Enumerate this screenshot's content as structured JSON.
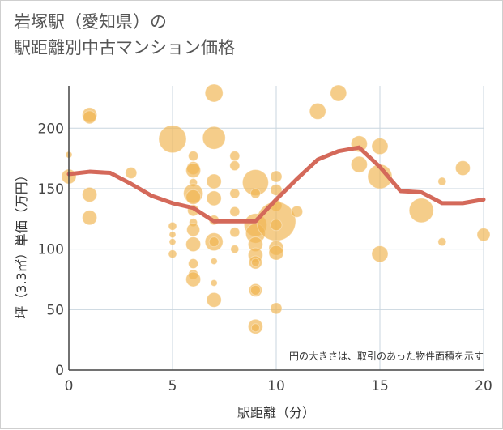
{
  "chart_data": {
    "type": "scatter",
    "title_lines": [
      "岩塚駅（愛知県）の",
      "駅距離別中古マンション価格"
    ],
    "xlabel": "駅距離（分）",
    "ylabel": "坪（3.3㎡）単価（万円）",
    "xlim": [
      0,
      20
    ],
    "ylim": [
      0,
      235
    ],
    "x_ticks": [
      0,
      5,
      10,
      15,
      20
    ],
    "y_ticks": [
      0,
      50,
      100,
      150,
      200
    ],
    "grid": true,
    "note": "円の大きさは、取引のあった物件面積を示す",
    "colors": {
      "bubble": "#f0b552",
      "line": "#d4695a",
      "grid": "#c9d6df",
      "axis": "#444444"
    },
    "bubbles": [
      {
        "x": 0,
        "y": 160,
        "size": 9
      },
      {
        "x": 0,
        "y": 178,
        "size": 4
      },
      {
        "x": 1,
        "y": 211,
        "size": 9
      },
      {
        "x": 1,
        "y": 209,
        "size": 8
      },
      {
        "x": 1,
        "y": 145,
        "size": 9
      },
      {
        "x": 1,
        "y": 126,
        "size": 9
      },
      {
        "x": 3,
        "y": 163,
        "size": 7
      },
      {
        "x": 5,
        "y": 191,
        "size": 17
      },
      {
        "x": 5,
        "y": 119,
        "size": 5
      },
      {
        "x": 5,
        "y": 112,
        "size": 4
      },
      {
        "x": 5,
        "y": 106,
        "size": 4
      },
      {
        "x": 5,
        "y": 96,
        "size": 5
      },
      {
        "x": 6,
        "y": 177,
        "size": 6
      },
      {
        "x": 6,
        "y": 167,
        "size": 8
      },
      {
        "x": 6,
        "y": 165,
        "size": 9
      },
      {
        "x": 6,
        "y": 155,
        "size": 5
      },
      {
        "x": 6,
        "y": 146,
        "size": 12
      },
      {
        "x": 6,
        "y": 143,
        "size": 9
      },
      {
        "x": 6,
        "y": 132,
        "size": 7
      },
      {
        "x": 6,
        "y": 122,
        "size": 5
      },
      {
        "x": 6,
        "y": 116,
        "size": 8
      },
      {
        "x": 6,
        "y": 104,
        "size": 9
      },
      {
        "x": 6,
        "y": 88,
        "size": 6
      },
      {
        "x": 6,
        "y": 79,
        "size": 6
      },
      {
        "x": 6,
        "y": 75,
        "size": 9
      },
      {
        "x": 7,
        "y": 229,
        "size": 11
      },
      {
        "x": 7,
        "y": 192,
        "size": 14
      },
      {
        "x": 7,
        "y": 156,
        "size": 9
      },
      {
        "x": 7,
        "y": 142,
        "size": 9
      },
      {
        "x": 7,
        "y": 124,
        "size": 6
      },
      {
        "x": 7,
        "y": 106,
        "size": 11
      },
      {
        "x": 7,
        "y": 106,
        "size": 6
      },
      {
        "x": 7,
        "y": 90,
        "size": 4
      },
      {
        "x": 7,
        "y": 72,
        "size": 4
      },
      {
        "x": 7,
        "y": 58,
        "size": 9
      },
      {
        "x": 8,
        "y": 177,
        "size": 6
      },
      {
        "x": 8,
        "y": 169,
        "size": 6
      },
      {
        "x": 8,
        "y": 146,
        "size": 6
      },
      {
        "x": 8,
        "y": 131,
        "size": 6
      },
      {
        "x": 8,
        "y": 114,
        "size": 6
      },
      {
        "x": 8,
        "y": 100,
        "size": 5
      },
      {
        "x": 9,
        "y": 155,
        "size": 16
      },
      {
        "x": 9,
        "y": 146,
        "size": 6
      },
      {
        "x": 9,
        "y": 120,
        "size": 14
      },
      {
        "x": 9,
        "y": 113,
        "size": 12
      },
      {
        "x": 9,
        "y": 104,
        "size": 9
      },
      {
        "x": 9,
        "y": 95,
        "size": 9
      },
      {
        "x": 9,
        "y": 89,
        "size": 8
      },
      {
        "x": 9,
        "y": 89,
        "size": 5
      },
      {
        "x": 9,
        "y": 66,
        "size": 8
      },
      {
        "x": 9,
        "y": 66,
        "size": 6
      },
      {
        "x": 9,
        "y": 36,
        "size": 9
      },
      {
        "x": 9,
        "y": 35,
        "size": 5
      },
      {
        "x": 10,
        "y": 160,
        "size": 7
      },
      {
        "x": 10,
        "y": 149,
        "size": 7
      },
      {
        "x": 10,
        "y": 136,
        "size": 7
      },
      {
        "x": 10,
        "y": 123,
        "size": 24
      },
      {
        "x": 10,
        "y": 120,
        "size": 7
      },
      {
        "x": 10,
        "y": 101,
        "size": 9
      },
      {
        "x": 10,
        "y": 97,
        "size": 9
      },
      {
        "x": 10,
        "y": 51,
        "size": 7
      },
      {
        "x": 11,
        "y": 131,
        "size": 7
      },
      {
        "x": 12,
        "y": 214,
        "size": 10
      },
      {
        "x": 13,
        "y": 229,
        "size": 10
      },
      {
        "x": 14,
        "y": 187,
        "size": 10
      },
      {
        "x": 14,
        "y": 170,
        "size": 10
      },
      {
        "x": 15,
        "y": 185,
        "size": 10
      },
      {
        "x": 15,
        "y": 160,
        "size": 15
      },
      {
        "x": 15,
        "y": 96,
        "size": 10
      },
      {
        "x": 17,
        "y": 132,
        "size": 15
      },
      {
        "x": 18,
        "y": 156,
        "size": 5
      },
      {
        "x": 18,
        "y": 106,
        "size": 5
      },
      {
        "x": 19,
        "y": 167,
        "size": 9
      },
      {
        "x": 20,
        "y": 112,
        "size": 8
      }
    ],
    "trend": {
      "x": [
        0,
        1,
        2,
        3,
        4,
        5,
        6,
        7,
        8,
        9,
        10,
        11,
        12,
        13,
        14,
        15,
        16,
        17,
        18,
        19,
        20
      ],
      "y": [
        162,
        164,
        163,
        154,
        144,
        138,
        134,
        123,
        123,
        123,
        141,
        158,
        174,
        181,
        184,
        168,
        148,
        147,
        138,
        138,
        141
      ]
    }
  }
}
